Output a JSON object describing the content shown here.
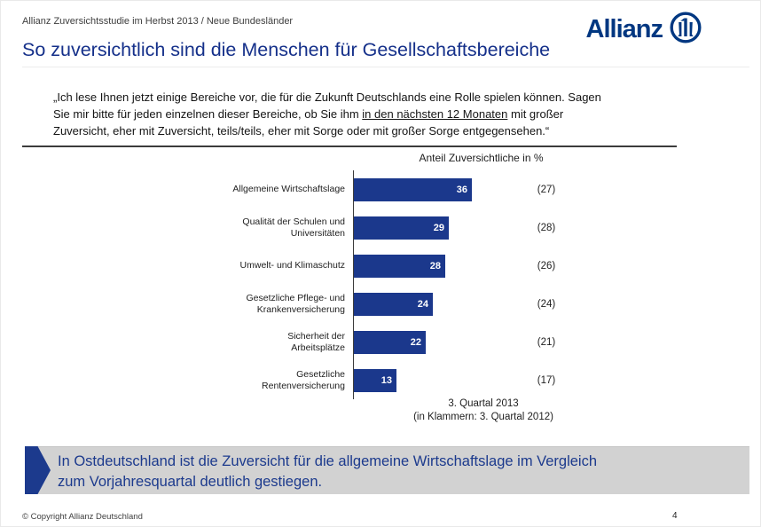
{
  "header": {
    "breadcrumb": "Allianz Zuversichtsstudie im Herbst 2013 / Neue Bundesländer",
    "logo_text": "Allianz",
    "title": "So zuversichtlich sind die Menschen für Gesellschaftsbereiche"
  },
  "quote": {
    "line1": "„Ich lese Ihnen jetzt einige Bereiche vor, die für die Zukunft Deutschlands eine Rolle spielen können. Sagen",
    "line2_pre": "Sie mir bitte für jeden einzelnen dieser Bereiche, ob Sie ihm ",
    "line2_underline": "in den nächsten 12 Monaten",
    "line2_post": " mit großer",
    "line3": "Zuversicht, eher mit Zuversicht, teils/teils, eher mit Sorge oder mit großer Sorge entgegensehen.“"
  },
  "chart_data": {
    "type": "bar",
    "orientation": "horizontal",
    "title": "Anteil Zuversichtliche in %",
    "categories": [
      "Allgemeine Wirtschaftslage",
      "Qualität der Schulen und\nUniversitäten",
      "Umwelt- und Klimaschutz",
      "Gesetzliche Pflege- und\nKrankenversicherung",
      "Sicherheit der\nArbeitsplätze",
      "Gesetzliche\nRentenversicherung"
    ],
    "series": [
      {
        "name": "3. Quartal 2013",
        "values": [
          36,
          29,
          28,
          24,
          22,
          13
        ]
      },
      {
        "name": "3. Quartal 2012",
        "values": [
          27,
          28,
          26,
          24,
          21,
          17
        ],
        "display": "parentheses"
      }
    ],
    "legend": [
      "3. Quartal 2013",
      "(in Klammern: 3. Quartal 2012)"
    ],
    "xlim": [
      0,
      40
    ],
    "grid": false,
    "bar_color": "#1b388c",
    "axis_color": "#3c3c3c"
  },
  "highlight": {
    "line1": "In Ostdeutschland ist die Zuversicht für die allgemeine Wirtschaftslage im Vergleich",
    "line2": "zum Vorjahresquartal deutlich gestiegen."
  },
  "footer": {
    "copyright": "© Copyright Allianz Deutschland",
    "page_number": "4"
  },
  "colors": {
    "allianz_blue": "#003781",
    "title_blue": "#15308a",
    "bar_blue": "#1b388c",
    "highlight_bg": "#d2d2d2",
    "highlight_text": "#1c3a8d"
  }
}
